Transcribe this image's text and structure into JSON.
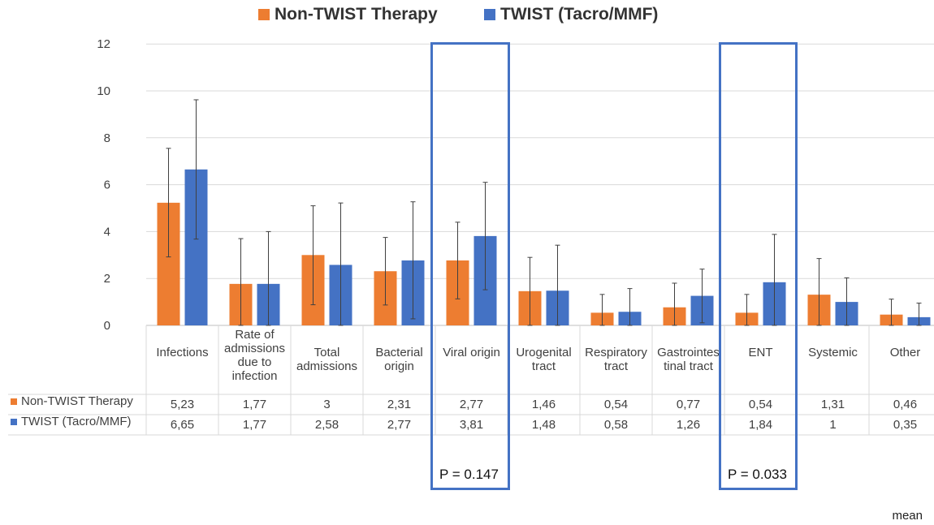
{
  "chart_data": {
    "type": "bar",
    "categories": [
      "Infections",
      "Rate of admissions due to infection",
      "Total admissions",
      "Bacterial origin",
      "Viral origin",
      "Urogenital tract",
      "Respiratory tract",
      "Gastrointestinal tract",
      "ENT",
      "Systemic",
      "Other"
    ],
    "category_labels": [
      [
        "Infections"
      ],
      [
        "Rate of",
        "admissions",
        "due to",
        "infection"
      ],
      [
        "Total",
        "admissions"
      ],
      [
        "Bacterial",
        "origin"
      ],
      [
        "Viral origin"
      ],
      [
        "Urogenital",
        "tract"
      ],
      [
        "Respiratory",
        "tract"
      ],
      [
        "Gastrointes",
        "tinal tract"
      ],
      [
        "ENT"
      ],
      [
        "Systemic"
      ],
      [
        "Other"
      ]
    ],
    "series": [
      {
        "name": "Non-TWIST Therapy",
        "color": "#ed7d31",
        "values": [
          5.23,
          1.77,
          3,
          2.31,
          2.77,
          1.46,
          0.54,
          0.77,
          0.54,
          1.31,
          0.46
        ],
        "error_upper": [
          7.55,
          3.7,
          5.1,
          3.75,
          4.4,
          2.9,
          1.32,
          1.8,
          1.32,
          2.85,
          1.12
        ],
        "error_lower": [
          2.92,
          0,
          0.88,
          0.87,
          1.13,
          0,
          0,
          0,
          0,
          0,
          0
        ],
        "table_values": [
          "5,23",
          "1,77",
          "3",
          "2,31",
          "2,77",
          "1,46",
          "0,54",
          "0,77",
          "0,54",
          "1,31",
          "0,46"
        ]
      },
      {
        "name": "TWIST (Tacro/MMF)",
        "color": "#4472c4",
        "values": [
          6.65,
          1.77,
          2.58,
          2.77,
          3.81,
          1.48,
          0.58,
          1.26,
          1.84,
          1,
          0.35
        ],
        "error_upper": [
          9.62,
          4.0,
          5.22,
          5.27,
          6.1,
          3.42,
          1.57,
          2.4,
          3.88,
          2.03,
          0.95
        ],
        "error_lower": [
          3.68,
          0,
          0,
          0.28,
          1.52,
          0,
          0,
          0.11,
          0,
          0,
          0
        ],
        "table_values": [
          "6,65",
          "1,77",
          "2,58",
          "2,77",
          "3,81",
          "1,48",
          "0,58",
          "1,26",
          "1,84",
          "1",
          "0,35"
        ]
      }
    ],
    "ylim": [
      0,
      12
    ],
    "yticks": [
      0,
      2,
      4,
      6,
      8,
      10,
      12
    ],
    "grid": true,
    "legend_position": "top-center",
    "has_data_table": true,
    "highlights": [
      {
        "category": "Viral origin",
        "label": "P = 0.147"
      },
      {
        "category": "ENT",
        "label": "P = 0.033"
      }
    ],
    "note": "mean"
  }
}
